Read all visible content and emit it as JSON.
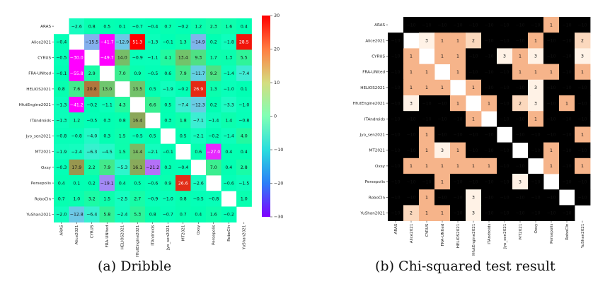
{
  "figure": {
    "caption_a": "(a) Dribble",
    "caption_b": "(b) Chi-squared test result"
  },
  "chart_data": [
    {
      "type": "heatmap",
      "title": "",
      "rows": [
        "ARAS",
        "Alice2021",
        "CYRUS",
        "FRA-UNIted",
        "HELIOS2021",
        "HfutEngine2021",
        "ITAndroids",
        "Jyo_sen2021",
        "MT2021",
        "Oxsy",
        "Persepolis",
        "RoboCIn",
        "YuShan2021"
      ],
      "cols": [
        "ARAS",
        "Alice2021",
        "CYRUS",
        "FRA-UNIted",
        "HELIOS2021",
        "HfutEngine2021",
        "ITAndroids",
        "Jyo_sen2021",
        "MT2021",
        "Oxsy",
        "Persepolis",
        "RoboCIn",
        "YuShan2021"
      ],
      "values": [
        [
          null,
          -2.6,
          0.8,
          0.5,
          0.1,
          -0.7,
          -0.4,
          0.7,
          -0.2,
          1.2,
          2.3,
          1.6,
          0.4
        ],
        [
          -0.4,
          null,
          -15.5,
          -41.7,
          -12.9,
          51.3,
          -1.3,
          -0.1,
          1.3,
          -14.9,
          0.2,
          -1.8,
          28.5
        ],
        [
          -0.5,
          -30.0,
          null,
          -49.7,
          14.0,
          -0.9,
          -1.1,
          4.1,
          13.4,
          9.3,
          1.7,
          1.3,
          5.5
        ],
        [
          -0.1,
          -55.8,
          2.9,
          null,
          7.0,
          0.9,
          -0.5,
          0.6,
          7.9,
          -11.7,
          9.2,
          -1.4,
          -7.4
        ],
        [
          0.8,
          7.6,
          20.8,
          13.0,
          null,
          13.5,
          0.5,
          -1.9,
          -0.2,
          26.9,
          1.3,
          -1.0,
          0.1
        ],
        [
          -1.3,
          -41.2,
          -0.2,
          -1.1,
          4.3,
          null,
          6.6,
          0.5,
          -7.4,
          -12.3,
          0.2,
          -3.3,
          -1.0
        ],
        [
          -1.3,
          1.2,
          -0.5,
          0.3,
          0.8,
          16.4,
          null,
          0.3,
          1.8,
          -7.1,
          -1.4,
          1.4,
          -0.8
        ],
        [
          -0.8,
          -0.8,
          -4.0,
          0.3,
          1.5,
          -0.5,
          0.5,
          null,
          0.5,
          -2.1,
          -0.2,
          -1.4,
          4.0
        ],
        [
          -1.9,
          -2.4,
          -6.3,
          -4.5,
          1.5,
          14.4,
          -2.1,
          -0.1,
          null,
          0.6,
          -27.0,
          0.4,
          0.4
        ],
        [
          -0.3,
          17.9,
          2.2,
          7.9,
          -5.3,
          16.1,
          -21.2,
          0.3,
          -0.4,
          null,
          7.0,
          0.4,
          2.8
        ],
        [
          0.4,
          0.1,
          0.2,
          -19.1,
          0.4,
          0.5,
          -0.6,
          0.9,
          26.6,
          -2.6,
          null,
          -0.6,
          -1.5
        ],
        [
          0.7,
          1.0,
          3.2,
          1.5,
          -2.5,
          2.7,
          -0.9,
          -1.0,
          0.8,
          -0.5,
          -0.8,
          null,
          1.0
        ],
        [
          -2.0,
          -12.8,
          -6.4,
          5.8,
          -2.4,
          5.3,
          0.8,
          -0.7,
          0.7,
          0.4,
          1.6,
          -0.2,
          null
        ]
      ],
      "colormap": "rainbow",
      "vmin": -30,
      "vmax": 30,
      "colorbar_ticks": [
        30,
        20,
        10,
        0,
        -10,
        -20,
        -30
      ],
      "colorbar_tick_labels": [
        "30",
        "20",
        "10",
        "0",
        "−10",
        "−20",
        "−30"
      ]
    },
    {
      "type": "heatmap",
      "title": "",
      "rows": [
        "ARAS",
        "Alice2021",
        "CYRUS",
        "FRA-UNIted",
        "HELIOS2021",
        "HfutEngine2021",
        "ITAndroids",
        "Jyo_sen2021",
        "MT2021",
        "Oxsy",
        "Persepolis",
        "RoboCIn",
        "YuShan2021"
      ],
      "cols": [
        "ARAS",
        "Alice2021",
        "CYRUS",
        "FRA-UNIted",
        "HELIOS2021",
        "HfutEngine2021",
        "ITAndroids",
        "Jyo_sen2021",
        "MT2021",
        "Oxsy",
        "Persepolis",
        "RoboCIn",
        "YuShan2021"
      ],
      "values": [
        [
          null,
          -10,
          -10,
          -10,
          -10,
          -10,
          -10,
          -10,
          -10,
          -10,
          1,
          -10,
          -10
        ],
        [
          -10,
          null,
          3,
          1,
          1,
          2,
          -10,
          -10,
          -10,
          1,
          -10,
          -10,
          2
        ],
        [
          -10,
          1,
          null,
          1,
          1,
          -10,
          -10,
          3,
          1,
          3,
          -10,
          -10,
          3
        ],
        [
          -10,
          1,
          1,
          null,
          1,
          -10,
          -10,
          -10,
          1,
          1,
          1,
          -10,
          1
        ],
        [
          -10,
          1,
          1,
          1,
          null,
          1,
          -10,
          -10,
          -10,
          3,
          -10,
          -10,
          -10
        ],
        [
          -10,
          3,
          -10,
          -10,
          1,
          null,
          1,
          -10,
          2,
          3,
          -10,
          1,
          -10
        ],
        [
          -10,
          -10,
          -10,
          -10,
          -10,
          1,
          null,
          -10,
          -10,
          1,
          -10,
          -10,
          -10
        ],
        [
          -10,
          -10,
          1,
          -10,
          -10,
          -10,
          -10,
          null,
          -10,
          -10,
          -10,
          -10,
          1
        ],
        [
          -10,
          -10,
          1,
          3,
          1,
          -10,
          -10,
          -10,
          null,
          -10,
          1,
          -10,
          -10
        ],
        [
          -10,
          1,
          1,
          1,
          1,
          1,
          1,
          -10,
          -10,
          null,
          1,
          -10,
          1
        ],
        [
          -10,
          -10,
          -10,
          1,
          -10,
          -10,
          -10,
          -10,
          3,
          -10,
          null,
          -10,
          -10
        ],
        [
          -10,
          -10,
          1,
          -10,
          -10,
          3,
          -10,
          -10,
          -10,
          -10,
          -10,
          null,
          -10
        ],
        [
          -10,
          2,
          1,
          1,
          -10,
          3,
          -10,
          -10,
          -10,
          -10,
          -10,
          -10,
          null
        ]
      ],
      "colors": {
        "-10": "#000000",
        "1": "#f6b48a",
        "2": "#fbd8bd",
        "3": "#fff2e6"
      }
    }
  ]
}
